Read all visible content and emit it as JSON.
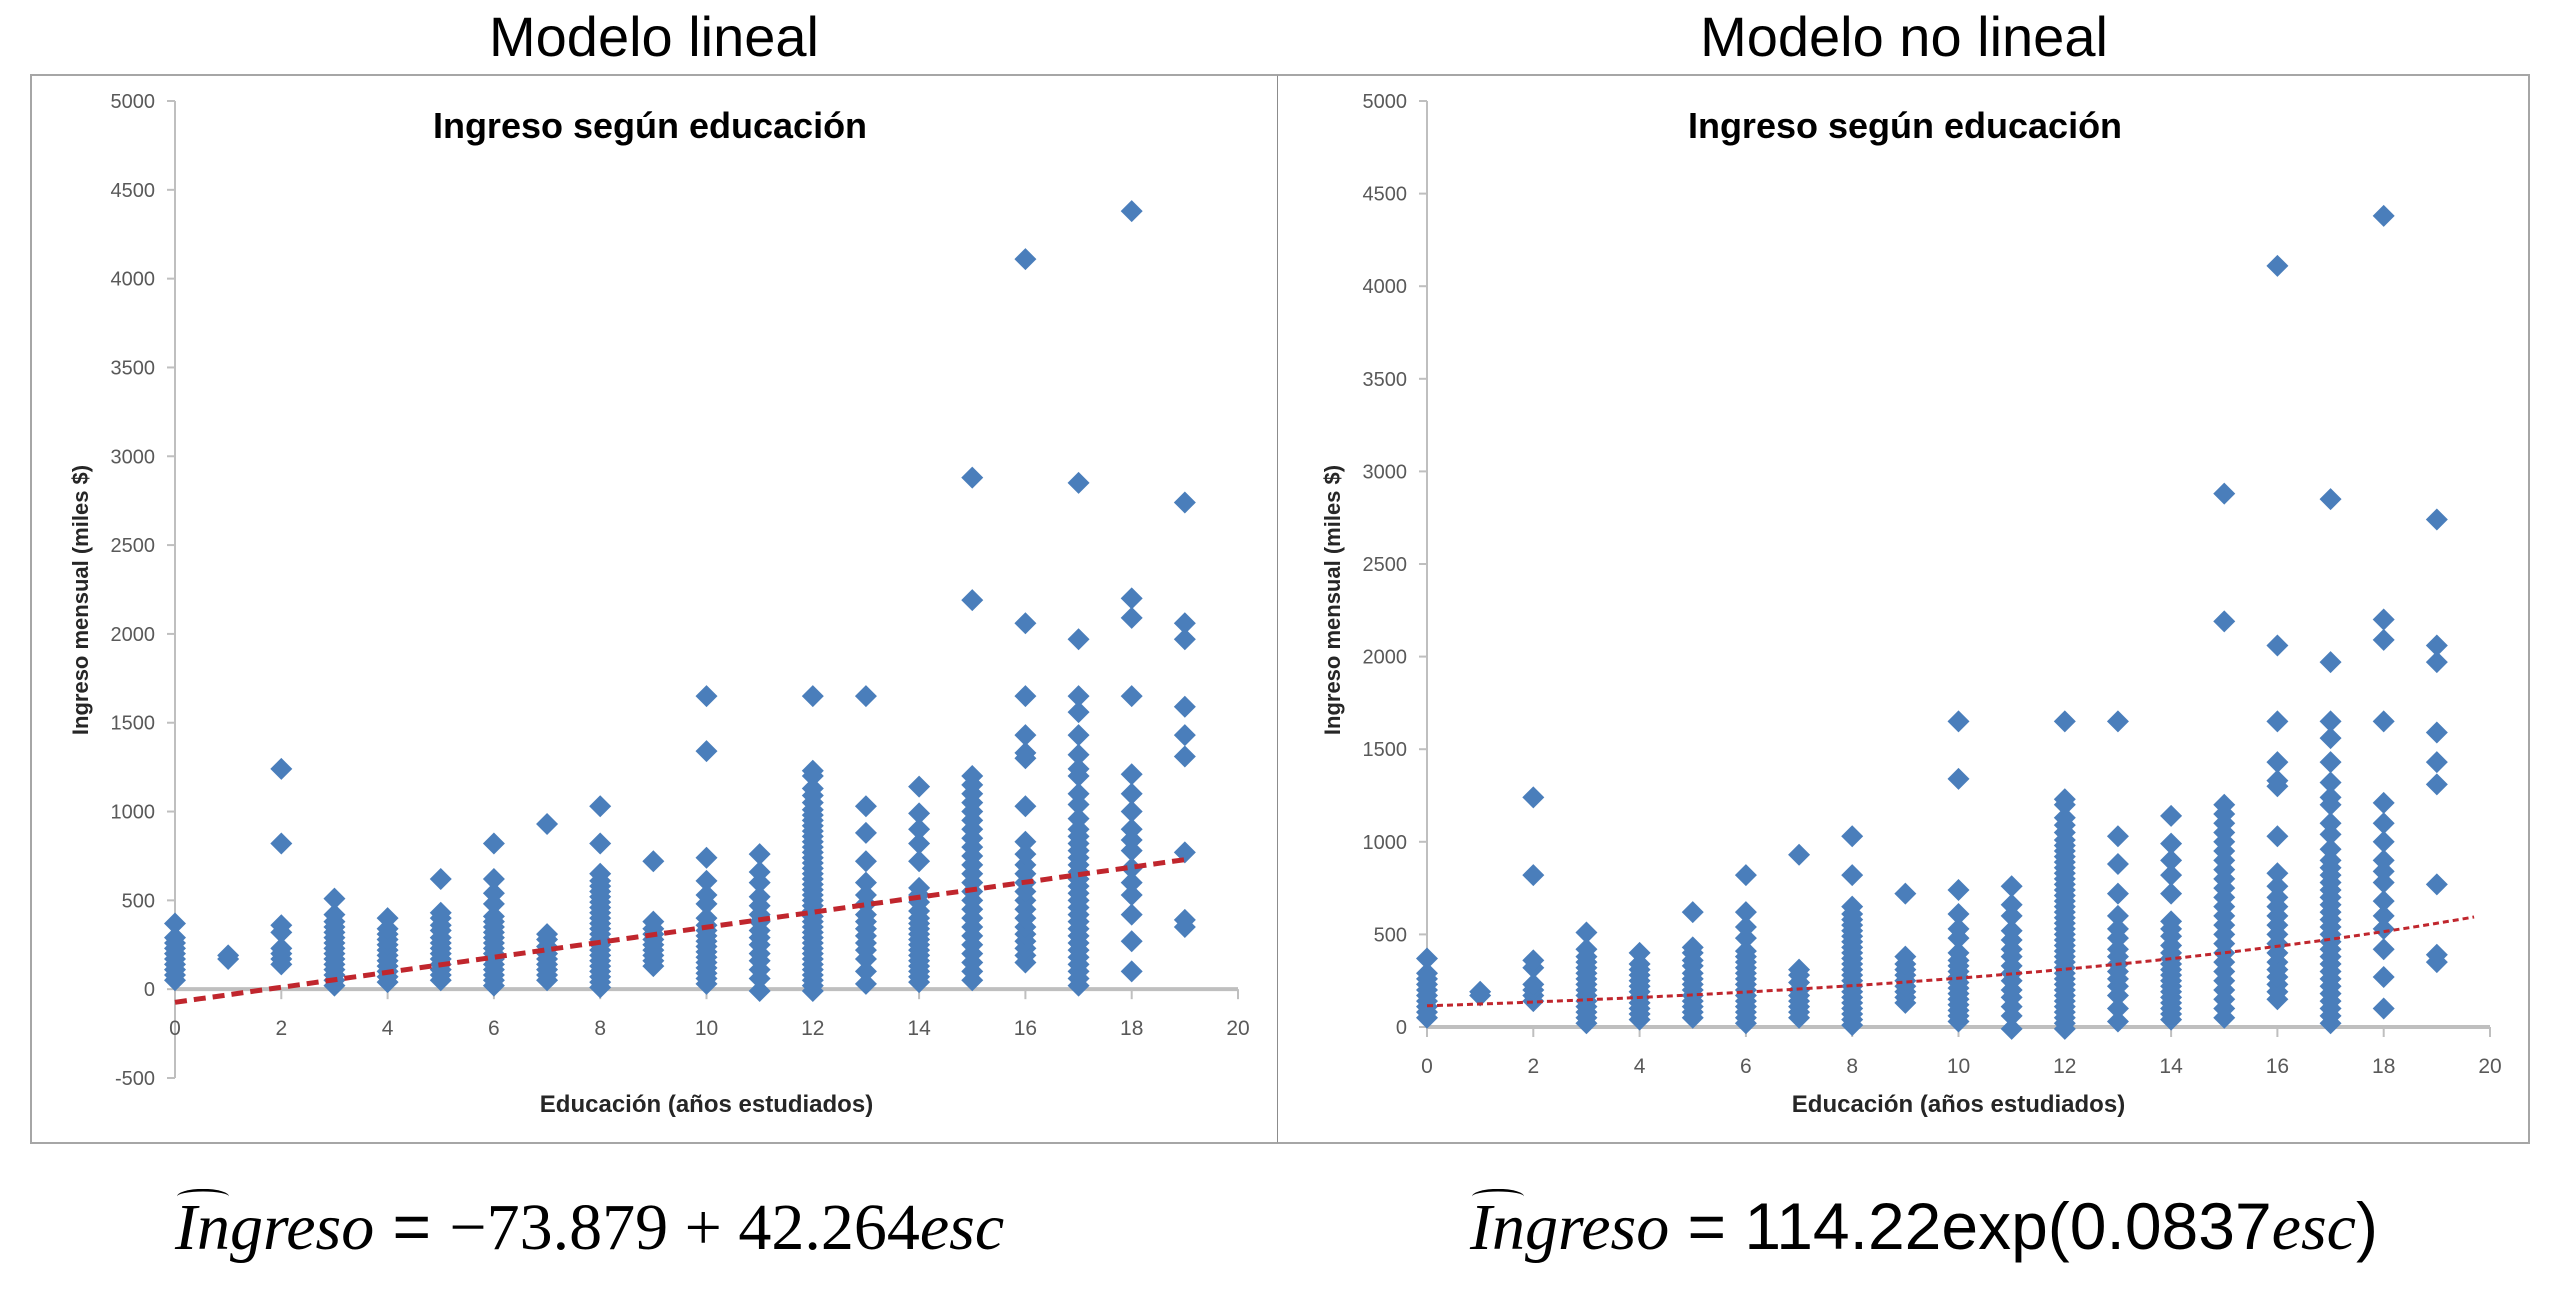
{
  "titles": {
    "left": "Modelo lineal",
    "right": "Modelo no lineal"
  },
  "equations": {
    "left": {
      "lhs": "Ingreso",
      "eq": " = ",
      "rhs_a": "−73.879 + 42.264",
      "rhs_var": "esc",
      "rhs_b": ""
    },
    "right": {
      "lhs": "Ingreso",
      "eq": " = ",
      "rhs_a": "114.22exp(0.0837",
      "rhs_var": "esc",
      "rhs_b": ")"
    }
  },
  "colors": {
    "marker": "#4A7EBB",
    "trend": "#C0262D",
    "axis": "#bfbfbf",
    "tick_text": "#595959"
  },
  "chart_data": [
    {
      "id": "linear",
      "type": "scatter",
      "title": "Ingreso según educación",
      "xlabel": "Educación (años estudiados)",
      "ylabel": "Ingreso mensual (miles $)",
      "xlim": [
        0,
        20
      ],
      "ylim": [
        -500,
        5000
      ],
      "xticks": [
        0,
        2,
        4,
        6,
        8,
        10,
        12,
        14,
        16,
        18,
        20
      ],
      "yticks": [
        -500,
        0,
        500,
        1000,
        1500,
        2000,
        2500,
        3000,
        3500,
        4000,
        4500,
        5000
      ],
      "grid": false,
      "legend": "none",
      "trendline": {
        "type": "linear",
        "intercept": -73.879,
        "slope": 42.264,
        "x_range": [
          0,
          19
        ],
        "style": "dashed"
      },
      "points_by_x": {
        "0": [
          50,
          80,
          110,
          140,
          170,
          200,
          230,
          260,
          290,
          370
        ],
        "1": [
          170,
          190
        ],
        "2": [
          140,
          170,
          200,
          230,
          320,
          360,
          820,
          1240
        ],
        "3": [
          20,
          50,
          80,
          110,
          140,
          170,
          200,
          230,
          260,
          290,
          320,
          350,
          380,
          420,
          510
        ],
        "4": [
          40,
          70,
          100,
          130,
          160,
          190,
          220,
          250,
          280,
          310,
          340,
          400
        ],
        "5": [
          50,
          80,
          110,
          140,
          170,
          200,
          230,
          260,
          290,
          330,
          360,
          400,
          430,
          620
        ],
        "6": [
          20,
          50,
          80,
          110,
          140,
          170,
          200,
          230,
          260,
          290,
          320,
          350,
          380,
          410,
          480,
          540,
          620,
          820
        ],
        "7": [
          50,
          80,
          110,
          140,
          170,
          200,
          240,
          280,
          310,
          930
        ],
        "8": [
          10,
          40,
          70,
          100,
          130,
          160,
          190,
          220,
          250,
          280,
          310,
          340,
          370,
          400,
          430,
          460,
          490,
          520,
          550,
          580,
          610,
          650,
          820,
          1030
        ],
        "9": [
          130,
          160,
          190,
          220,
          250,
          280,
          310,
          340,
          380,
          720
        ],
        "10": [
          30,
          60,
          90,
          120,
          150,
          180,
          210,
          240,
          270,
          300,
          330,
          360,
          400,
          480,
          530,
          610,
          740,
          1340,
          1650
        ],
        "11": [
          -10,
          60,
          110,
          160,
          200,
          250,
          290,
          330,
          380,
          420,
          470,
          520,
          600,
          660,
          760
        ],
        "12": [
          -10,
          20,
          50,
          80,
          110,
          140,
          170,
          200,
          230,
          260,
          290,
          320,
          350,
          380,
          410,
          440,
          470,
          500,
          530,
          560,
          590,
          620,
          650,
          680,
          710,
          740,
          770,
          800,
          830,
          860,
          890,
          920,
          950,
          980,
          1010,
          1050,
          1090,
          1130,
          1200,
          1230,
          1650
        ],
        "13": [
          30,
          100,
          170,
          220,
          260,
          300,
          340,
          380,
          420,
          480,
          530,
          600,
          720,
          880,
          1030,
          1650
        ],
        "14": [
          40,
          70,
          100,
          130,
          160,
          190,
          220,
          250,
          280,
          310,
          340,
          370,
          400,
          440,
          490,
          530,
          570,
          720,
          820,
          900,
          990,
          1140
        ],
        "15": [
          50,
          100,
          150,
          200,
          250,
          300,
          350,
          400,
          450,
          500,
          550,
          600,
          650,
          700,
          750,
          800,
          850,
          900,
          950,
          1000,
          1050,
          1100,
          1150,
          1200,
          2190,
          2880
        ],
        "16": [
          150,
          190,
          230,
          270,
          310,
          350,
          400,
          450,
          500,
          550,
          600,
          650,
          700,
          760,
          830,
          1030,
          1300,
          1330,
          1430,
          1650,
          2060,
          4110
        ],
        "17": [
          20,
          60,
          100,
          140,
          180,
          220,
          260,
          300,
          340,
          380,
          420,
          460,
          500,
          540,
          580,
          620,
          660,
          700,
          740,
          780,
          820,
          860,
          900,
          960,
          1040,
          1100,
          1200,
          1240,
          1320,
          1430,
          1560,
          1650,
          1970,
          2850
        ],
        "18": [
          100,
          270,
          420,
          530,
          600,
          680,
          780,
          840,
          900,
          1000,
          1100,
          1210,
          1650,
          2090,
          2200,
          4380
        ],
        "19": [
          350,
          390,
          770,
          1310,
          1430,
          1590,
          1970,
          2060,
          2740
        ]
      }
    },
    {
      "id": "nonlinear",
      "type": "scatter",
      "title": "Ingreso según educación",
      "xlabel": "Educación (años estudiados)",
      "ylabel": "Ingreso mensual (miles $)",
      "xlim": [
        0,
        20
      ],
      "ylim": [
        0,
        5000
      ],
      "xticks": [
        0,
        2,
        4,
        6,
        8,
        10,
        12,
        14,
        16,
        18,
        20
      ],
      "yticks": [
        0,
        500,
        1000,
        1500,
        2000,
        2500,
        3000,
        3500,
        4000,
        4500,
        5000
      ],
      "grid": false,
      "legend": "none",
      "trendline": {
        "type": "exponential",
        "a": 114.22,
        "b": 0.0837,
        "x_range": [
          0,
          19.7
        ],
        "style": "dashed"
      },
      "points_by_x_same_as": "linear"
    }
  ]
}
